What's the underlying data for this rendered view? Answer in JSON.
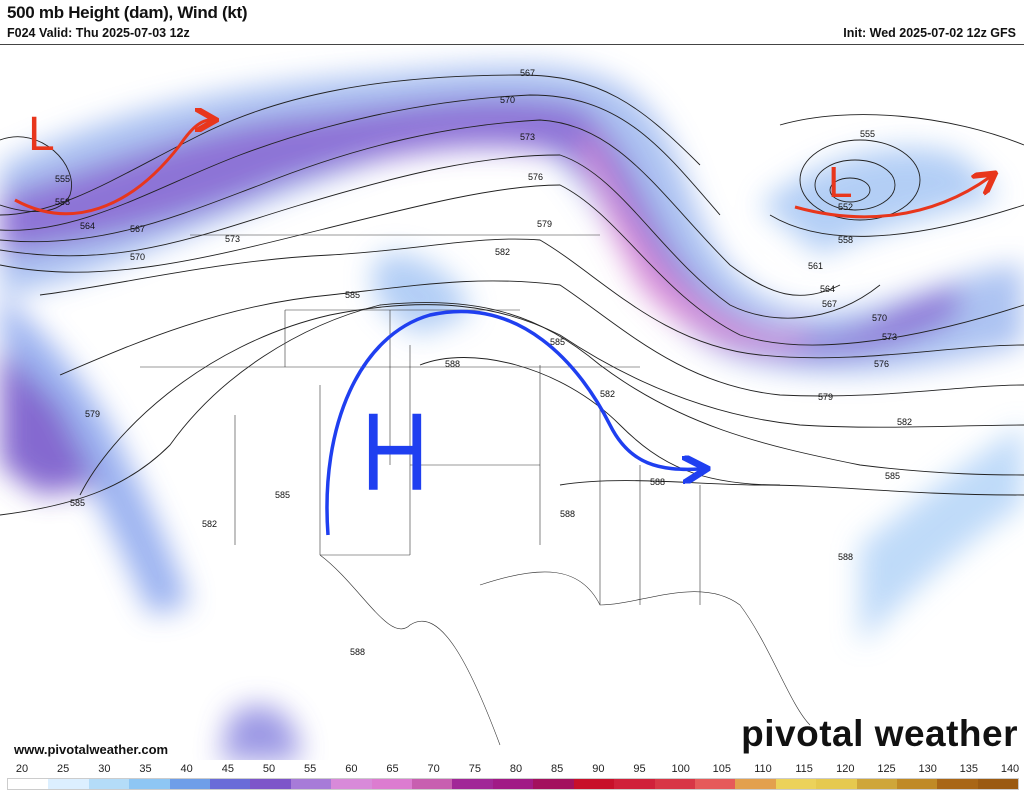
{
  "header": {
    "title": "500 mb Height (dam), Wind (kt)",
    "valid": "F024 Valid: Thu 2025-07-03 12z",
    "init": "Init: Wed 2025-07-02 12z GFS"
  },
  "map": {
    "contour_labels": [
      "567",
      "570",
      "573",
      "576",
      "579",
      "582",
      "585",
      "588",
      "555",
      "558",
      "564",
      "567",
      "570",
      "573",
      "579",
      "585",
      "582",
      "552",
      "555",
      "558",
      "561",
      "564",
      "567",
      "570",
      "573",
      "576",
      "579",
      "582",
      "585",
      "588",
      "588",
      "588",
      "585",
      "582",
      "585",
      "588"
    ],
    "annotations": {
      "low_west": "L",
      "low_east": "L",
      "high_center": "H",
      "red_color": "#e8361c",
      "blue_color": "#1f3ff0"
    }
  },
  "footer": {
    "url": "www.pivotalweather.com",
    "logo": "pivotal weather"
  },
  "colorbar": {
    "ticks": [
      "20",
      "25",
      "30",
      "35",
      "40",
      "45",
      "50",
      "55",
      "60",
      "65",
      "70",
      "75",
      "80",
      "85",
      "90",
      "95",
      "100",
      "105",
      "110",
      "115",
      "120",
      "125",
      "130",
      "135",
      "140"
    ],
    "colors": [
      "#ffffff",
      "#dcefff",
      "#b4dcf8",
      "#8ec6f4",
      "#6f9ee8",
      "#6a6cd8",
      "#7d55c9",
      "#a77bd8",
      "#d88ad9",
      "#dc7cd0",
      "#c85fb0",
      "#a12797",
      "#a11a86",
      "#a3115e",
      "#c8102a",
      "#d0203a",
      "#d83646",
      "#e65a5a",
      "#e3a04e",
      "#ecd25a",
      "#e6c94f",
      "#cfa63a",
      "#c08a26",
      "#a96616",
      "#9b5a12"
    ]
  }
}
